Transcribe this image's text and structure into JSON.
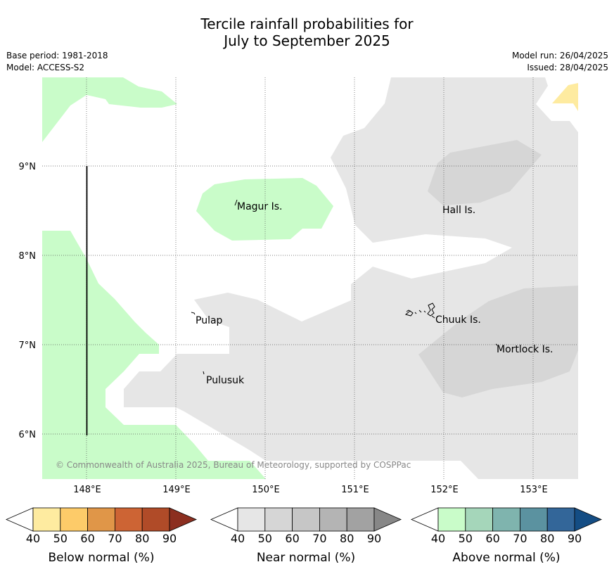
{
  "title_line1": "Tercile rainfall probabilities for",
  "title_line2": "July to September 2025",
  "base_period": "Base period: 1981-2018",
  "model": "Model: ACCESS-S2",
  "model_run": "Model run: 26/04/2025",
  "issued": "Issued: 28/04/2025",
  "copyright": "© Commonwealth of Australia 2025, Bureau of Meteorology, supported by COSPPac",
  "lat_labels": [
    "9°N",
    "8°N",
    "7°N",
    "6°N"
  ],
  "lon_labels": [
    "148°E",
    "149°E",
    "150°E",
    "151°E",
    "152°E",
    "153°E"
  ],
  "places": [
    "Magur Is.",
    "Hall Is.",
    "Pulap",
    "Chuuk Is.",
    "Mortlock Is.",
    "Pulusuk"
  ],
  "legends": [
    {
      "title": "Below normal (%)",
      "ticks": [
        "40",
        "50",
        "60",
        "70",
        "80",
        "90"
      ],
      "colors": [
        "#ffffff",
        "#feeba0",
        "#fdcb69",
        "#e09648",
        "#cd6434",
        "#b04b28",
        "#8c2f20"
      ]
    },
    {
      "title": "Near normal (%)",
      "ticks": [
        "40",
        "50",
        "60",
        "70",
        "80",
        "90"
      ],
      "colors": [
        "#ffffff",
        "#e6e6e6",
        "#d6d6d6",
        "#c6c6c6",
        "#b4b4b4",
        "#a2a2a2",
        "#878787"
      ]
    },
    {
      "title": "Above normal (%)",
      "ticks": [
        "40",
        "50",
        "60",
        "70",
        "80",
        "90"
      ],
      "colors": [
        "#ffffff",
        "#c9fcc9",
        "#a5d6ba",
        "#7fb4ae",
        "#5b92a0",
        "#336699",
        "#144d84"
      ]
    }
  ]
}
